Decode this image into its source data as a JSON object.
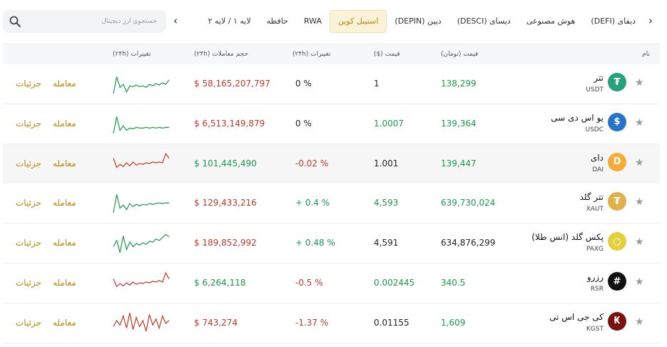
{
  "search": {
    "placeholder": "جستجوی ارز دیجیتال"
  },
  "tabs": [
    {
      "label": "دیفای (DEFI)",
      "active": false
    },
    {
      "label": "هوش مصنوعی",
      "active": false
    },
    {
      "label": "دیسای (DESCI)",
      "active": false
    },
    {
      "label": "دپین (DEPIN)",
      "active": false
    },
    {
      "label": "استیبل کوین",
      "active": true
    },
    {
      "label": "RWA",
      "active": false
    },
    {
      "label": "حافظه",
      "active": false
    },
    {
      "label": "لایه ۱ / لایه ۲",
      "active": false
    }
  ],
  "table": {
    "headers": {
      "name": "نام",
      "price_toman": "قیمت (تومان)",
      "price_usd": "قیمت ($)",
      "change_24h": "تغییرات (۲۴h)",
      "volume_24h": "حجم معاملات (۲۴h)",
      "chart_24h": "تغییرات (۲۴h)"
    },
    "actions": {
      "trade": "معامله",
      "details": "جزئیات"
    },
    "rows": [
      {
        "name": "تتر",
        "symbol": "USDT",
        "icon": "tether-icon",
        "icon_color": "#26a17b",
        "icon_glyph": "₮",
        "price_toman": "138,299",
        "toman_color": "green",
        "price_usd": "1",
        "usd_color": "dark",
        "change": "0 %",
        "change_color": "dark",
        "volume": "$ 58,165,207,797",
        "volume_color": "red",
        "spark_color": "#1a9a48",
        "spark": [
          30,
          8,
          22,
          18,
          28,
          20,
          21,
          19,
          21,
          20,
          22,
          18,
          20,
          17,
          19,
          16,
          18,
          12
        ],
        "shaded": false
      },
      {
        "name": "یو اس دی سی",
        "symbol": "USDC",
        "icon": "usdc-icon",
        "icon_color": "#2775ca",
        "icon_glyph": "$",
        "price_toman": "139,364",
        "toman_color": "green",
        "price_usd": "1.0007",
        "usd_color": "green",
        "change": "0 %",
        "change_color": "dark",
        "volume": "$ 6,513,149,879",
        "volume_color": "red",
        "spark_color": "#1a9a48",
        "spark": [
          30,
          8,
          26,
          20,
          26,
          23,
          24,
          22,
          23,
          23,
          22,
          23,
          22,
          23,
          22,
          23,
          22,
          22
        ],
        "shaded": false
      },
      {
        "name": "دای",
        "symbol": "DAI",
        "icon": "dai-icon",
        "icon_color": "#f5ac37",
        "icon_glyph": "D",
        "price_toman": "139,447",
        "toman_color": "green",
        "price_usd": "1.001",
        "usd_color": "dark",
        "change": "-0.02 %",
        "change_color": "red",
        "volume": "$ 101,445,490",
        "volume_color": "green",
        "spark_color": "#c0392b",
        "spark": [
          10,
          22,
          18,
          21,
          16,
          20,
          15,
          19,
          17,
          18,
          16,
          17,
          15,
          16,
          15,
          16,
          4,
          10
        ],
        "shaded": true
      },
      {
        "name": "تتر گلد",
        "symbol": "XAUT",
        "icon": "tether-gold-icon",
        "icon_color": "#e0b14a",
        "icon_glyph": "₮",
        "price_toman": "639,730,024",
        "toman_color": "green",
        "price_usd": "4,593",
        "usd_color": "green",
        "change": "+ 0.4 %",
        "change_color": "green",
        "volume": "$ 129,433,216",
        "volume_color": "red",
        "spark_color": "#1a9a48",
        "spark": [
          30,
          6,
          24,
          20,
          26,
          18,
          22,
          19,
          21,
          19,
          20,
          18,
          19,
          18,
          17,
          18,
          17,
          17
        ],
        "shaded": false
      },
      {
        "name": "پکس گلد (انس طلا)",
        "symbol": "PAXG",
        "icon": "pax-gold-icon",
        "icon_color": "#e4cf3d",
        "icon_glyph": "○",
        "price_toman": "634,876,299",
        "toman_color": "dark",
        "price_usd": "4,591",
        "usd_color": "dark",
        "change": "+ 0.48 %",
        "change_color": "green",
        "volume": "$ 189,852,992",
        "volume_color": "red",
        "spark_color": "#1a9a48",
        "spark": [
          22,
          14,
          30,
          8,
          26,
          16,
          22,
          18,
          20,
          17,
          19,
          15,
          16,
          12,
          14,
          10,
          6,
          9
        ],
        "shaded": false
      },
      {
        "name": "رزرو",
        "symbol": "RSR",
        "icon": "reserve-icon",
        "icon_color": "#111111",
        "icon_glyph": "#",
        "price_toman": "340.5",
        "toman_color": "green",
        "price_usd": "0.002445",
        "usd_color": "green",
        "change": "-0.5 %",
        "change_color": "red",
        "volume": "$ 6,264,118",
        "volume_color": "green",
        "spark_color": "#c0392b",
        "spark": [
          12,
          22,
          18,
          21,
          17,
          20,
          16,
          19,
          17,
          18,
          16,
          17,
          15,
          16,
          14,
          16,
          4,
          12
        ],
        "shaded": false
      },
      {
        "name": "کی جی اس تی",
        "symbol": "KGST",
        "icon": "kgst-icon",
        "icon_color": "#7a1212",
        "icon_glyph": "₭",
        "price_toman": "1,609",
        "toman_color": "green",
        "price_usd": "0.01155",
        "usd_color": "dark",
        "change": "-1.37 %",
        "change_color": "red",
        "volume": "$ 743,274",
        "volume_color": "red",
        "spark_color": "#c0392b",
        "spark": [
          22,
          14,
          20,
          8,
          24,
          4,
          26,
          10,
          22,
          14,
          28,
          6,
          20,
          12,
          24,
          8,
          18,
          14
        ],
        "shaded": false
      }
    ]
  }
}
